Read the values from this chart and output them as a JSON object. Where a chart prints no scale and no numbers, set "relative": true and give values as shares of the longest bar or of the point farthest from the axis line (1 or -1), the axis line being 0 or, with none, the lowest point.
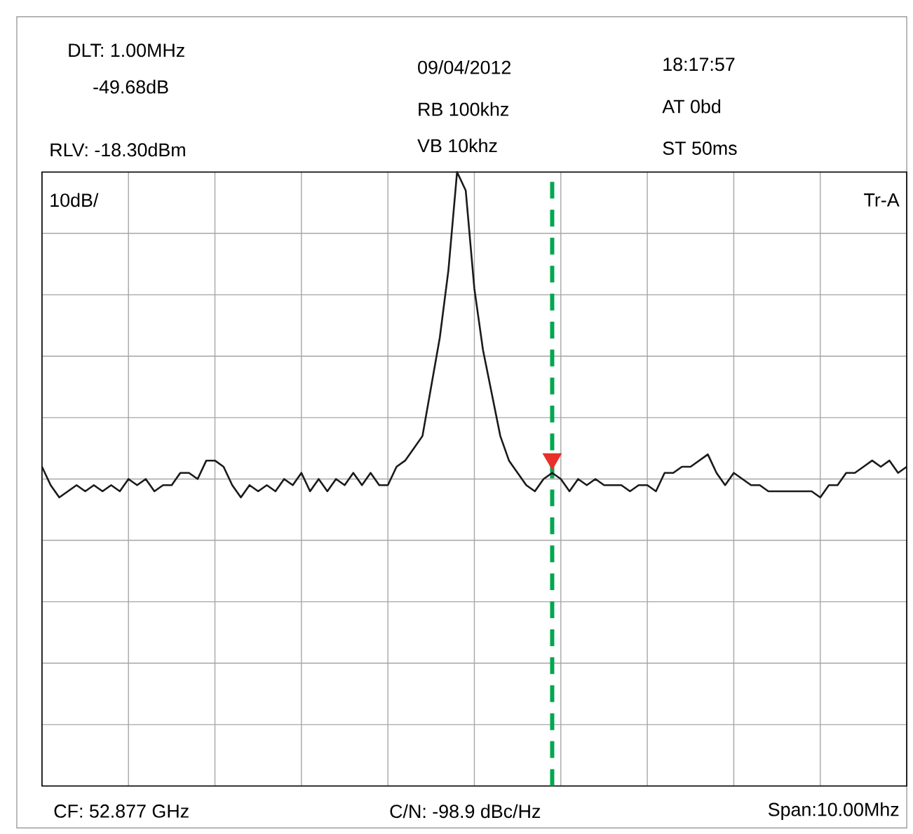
{
  "chart_data": {
    "type": "line",
    "relative": true,
    "grid": true,
    "tick_labels": false,
    "categories": [
      null,
      null,
      null,
      null,
      null,
      null,
      null,
      null,
      null,
      null,
      null,
      null,
      null,
      null,
      null,
      null,
      null,
      null,
      null,
      null,
      null,
      null,
      null,
      null,
      null,
      null,
      null,
      null,
      null,
      null,
      null,
      null,
      null,
      null,
      null,
      null,
      null,
      null,
      null,
      null,
      null,
      null,
      null,
      null,
      null,
      null,
      null,
      null,
      null,
      null,
      null,
      null,
      null,
      null,
      null,
      null,
      null,
      null,
      null,
      null,
      null,
      null,
      null,
      null,
      null,
      null,
      null,
      null,
      null,
      null,
      null,
      null,
      null,
      null,
      null,
      null,
      null,
      null,
      null,
      null,
      null,
      null,
      null,
      null,
      null,
      null,
      null,
      null,
      null,
      null,
      null,
      null,
      null,
      null,
      null,
      null,
      null,
      null,
      null,
      null,
      null
    ],
    "series": [
      {
        "color": "#1a1a1a",
        "values": [
          0.52,
          0.49,
          0.47,
          0.48,
          0.49,
          0.48,
          0.49,
          0.48,
          0.49,
          0.48,
          0.5,
          0.49,
          0.5,
          0.48,
          0.49,
          0.49,
          0.51,
          0.51,
          0.5,
          0.53,
          0.53,
          0.52,
          0.49,
          0.47,
          0.49,
          0.48,
          0.49,
          0.48,
          0.5,
          0.49,
          0.51,
          0.48,
          0.5,
          0.48,
          0.5,
          0.49,
          0.51,
          0.49,
          0.51,
          0.49,
          0.49,
          0.52,
          0.53,
          0.55,
          0.57,
          0.65,
          0.73,
          0.84,
          1,
          0.97,
          0.81,
          0.71,
          0.64,
          0.57,
          0.53,
          0.51,
          0.49,
          0.48,
          0.5,
          0.51,
          0.5,
          0.48,
          0.5,
          0.49,
          0.5,
          0.49,
          0.49,
          0.49,
          0.48,
          0.49,
          0.49,
          0.48,
          0.51,
          0.51,
          0.52,
          0.52,
          0.53,
          0.54,
          0.51,
          0.49,
          0.51,
          0.5,
          0.49,
          0.49,
          0.48,
          0.48,
          0.48,
          0.48,
          0.48,
          0.48,
          0.47,
          0.49,
          0.49,
          0.51,
          0.51,
          0.52,
          0.53,
          0.52,
          0.53,
          0.51,
          0.52
        ]
      }
    ],
    "annotations": [
      "DLT: 1.00MHz",
      "-49.68dB",
      "RLV: -18.30dBm",
      "09/04/2012",
      "RB 100khz",
      "VB 10khz",
      "18:17:57",
      "AT 0bd",
      "ST 50ms",
      "10dB/",
      "Tr-A",
      "CF: 52.877 GHz",
      "C/N: -98.9 dBc/Hz",
      "Span:10.00Mhz"
    ]
  }
}
